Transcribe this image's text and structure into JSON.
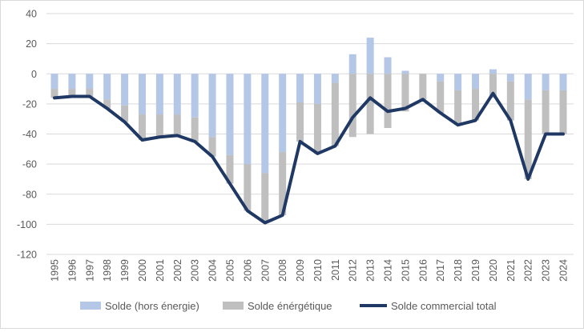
{
  "chart_data": {
    "type": "bar",
    "stacked": true,
    "title": "",
    "xlabel": "",
    "ylabel": "",
    "categories": [
      "1995",
      "1996",
      "1997",
      "1998",
      "1999",
      "2000",
      "2001",
      "2002",
      "2003",
      "2004",
      "2005",
      "2006",
      "2007",
      "2008",
      "2009",
      "2010",
      "2011",
      "2012",
      "2013",
      "2014",
      "2015",
      "2016",
      "2017",
      "2018",
      "2019",
      "2020",
      "2021",
      "2022",
      "2023",
      "2024"
    ],
    "series": [
      {
        "name": "Solde (hors énergie)",
        "type": "bar",
        "color": "#b4c7e7",
        "values": [
          -10,
          -10,
          -10,
          -17,
          -21,
          -27,
          -27,
          -27,
          -29,
          -42,
          -54,
          -60,
          -66,
          -52,
          -19,
          -20,
          -6,
          13,
          24,
          11,
          2,
          0,
          -5,
          -11,
          -10,
          3,
          -5,
          -17,
          -11,
          -11
        ]
      },
      {
        "name": "Solde énérgétique",
        "type": "bar",
        "color": "#bfbfbf",
        "values": [
          -6,
          -5,
          -5,
          -6,
          -11,
          -17,
          -15,
          -14,
          -16,
          -13,
          -19,
          -31,
          -33,
          -42,
          -26,
          -33,
          -42,
          -42,
          -40,
          -36,
          -25,
          -17,
          -21,
          -23,
          -21,
          -16,
          -26,
          -53,
          -29,
          -29
        ]
      },
      {
        "name": "Solde commercial total",
        "type": "line",
        "color": "#1f3864",
        "values": [
          -16,
          -15,
          -15,
          -23,
          -32,
          -44,
          -42,
          -41,
          -45,
          -55,
          -73,
          -91,
          -99,
          -94,
          -45,
          -53,
          -48,
          -29,
          -16,
          -25,
          -23,
          -17,
          -26,
          -34,
          -31,
          -13,
          -31,
          -70,
          -40,
          -40
        ]
      }
    ],
    "ylim": [
      -120,
      40
    ],
    "ytick_step": 20,
    "ytick_labels": [
      "40",
      "20",
      "0",
      "-20",
      "-40",
      "-60",
      "-80",
      "-100",
      "-120"
    ],
    "grid": true,
    "gridline_color": "#d9d9d9",
    "axis_text_color": "#595959",
    "legend_position": "bottom"
  }
}
